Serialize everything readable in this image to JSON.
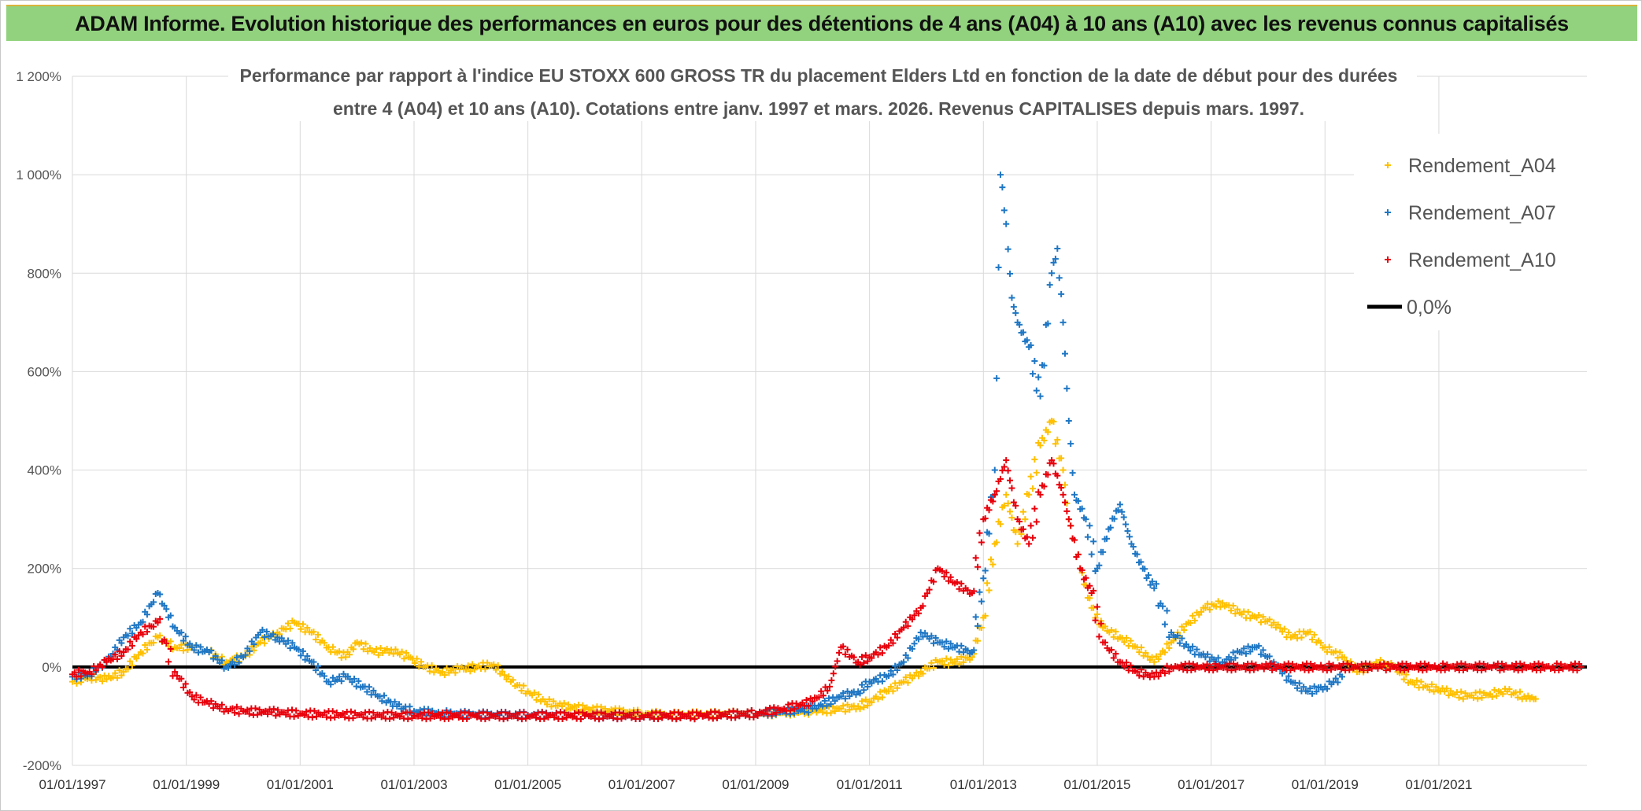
{
  "header": {
    "title": "ADAM Informe. Evolution historique des performances en euros pour des détentions de 4 ans (A04) à 10 ans (A10) avec les revenus connus capitalisés"
  },
  "chart_data": {
    "type": "scatter",
    "title_line1": "Performance par rapport à l'indice EU STOXX 600 GROSS TR  du placement Elders Ltd en fonction de la date de début pour des durées",
    "title_line2": "entre 4 (A04) et 10 ans (A10). Cotations entre janv. 1997 et mars. 2026. Revenus CAPITALISES depuis mars. 1997.",
    "xlabel": "",
    "ylabel": "",
    "xlim": [
      1997.0,
      2023.6
    ],
    "ylim": [
      -200,
      1200
    ],
    "y_ticks": [
      {
        "value": 1200,
        "label": "1 200%"
      },
      {
        "value": 1000,
        "label": "1 000%"
      },
      {
        "value": 800,
        "label": "800%"
      },
      {
        "value": 600,
        "label": "600%"
      },
      {
        "value": 400,
        "label": "400%"
      },
      {
        "value": 200,
        "label": "200%"
      },
      {
        "value": 0,
        "label": "0%"
      },
      {
        "value": -200,
        "label": "-200%"
      }
    ],
    "x_ticks": [
      {
        "value": 1997,
        "label": "01/01/1997"
      },
      {
        "value": 1999,
        "label": "01/01/1999"
      },
      {
        "value": 2001,
        "label": "01/01/2001"
      },
      {
        "value": 2003,
        "label": "01/01/2003"
      },
      {
        "value": 2005,
        "label": "01/01/2005"
      },
      {
        "value": 2007,
        "label": "01/01/2007"
      },
      {
        "value": 2009,
        "label": "01/01/2009"
      },
      {
        "value": 2011,
        "label": "01/01/2011"
      },
      {
        "value": 2013,
        "label": "01/01/2013"
      },
      {
        "value": 2015,
        "label": "01/01/2015"
      },
      {
        "value": 2017,
        "label": "01/01/2017"
      },
      {
        "value": 2019,
        "label": "01/01/2019"
      },
      {
        "value": 2021,
        "label": "01/01/2021"
      }
    ],
    "legend": [
      {
        "name": "Rendement_A04",
        "marker": "+",
        "color": "#ffc000"
      },
      {
        "name": "Rendement_A07",
        "marker": "+",
        "color": "#1f77c4"
      },
      {
        "name": "Rendement_A10",
        "marker": "+",
        "color": "#e8000b"
      },
      {
        "name": "0,0%",
        "marker": "line",
        "color": "#000000"
      }
    ],
    "legend_position": "top-right",
    "series": [
      {
        "name": "Rendement_A04",
        "color": "#ffc000",
        "points": [
          [
            1997.0,
            -30
          ],
          [
            1997.3,
            -20
          ],
          [
            1997.6,
            -25
          ],
          [
            1997.9,
            -10
          ],
          [
            1998.2,
            30
          ],
          [
            1998.5,
            60
          ],
          [
            1998.8,
            40
          ],
          [
            1999.1,
            40
          ],
          [
            1999.4,
            30
          ],
          [
            1999.7,
            10
          ],
          [
            2000.0,
            20
          ],
          [
            2000.3,
            50
          ],
          [
            2000.6,
            70
          ],
          [
            2000.9,
            90
          ],
          [
            2001.2,
            70
          ],
          [
            2001.5,
            40
          ],
          [
            2001.8,
            20
          ],
          [
            2002.0,
            50
          ],
          [
            2002.3,
            30
          ],
          [
            2002.6,
            35
          ],
          [
            2002.9,
            20
          ],
          [
            2003.2,
            0
          ],
          [
            2003.5,
            -10
          ],
          [
            2003.8,
            -5
          ],
          [
            2004.1,
            0
          ],
          [
            2004.4,
            5
          ],
          [
            2004.7,
            -30
          ],
          [
            2005.0,
            -50
          ],
          [
            2005.3,
            -70
          ],
          [
            2005.6,
            -80
          ],
          [
            2006.0,
            -85
          ],
          [
            2006.5,
            -90
          ],
          [
            2007.0,
            -95
          ],
          [
            2007.5,
            -98
          ],
          [
            2008.0,
            -97
          ],
          [
            2008.5,
            -96
          ],
          [
            2009.0,
            -95
          ],
          [
            2009.5,
            -92
          ],
          [
            2010.0,
            -90
          ],
          [
            2010.5,
            -85
          ],
          [
            2010.8,
            -80
          ],
          [
            2011.0,
            -70
          ],
          [
            2011.3,
            -50
          ],
          [
            2011.6,
            -30
          ],
          [
            2011.9,
            -10
          ],
          [
            2012.2,
            10
          ],
          [
            2012.5,
            10
          ],
          [
            2012.8,
            20
          ],
          [
            2013.0,
            100
          ],
          [
            2013.2,
            250
          ],
          [
            2013.4,
            350
          ],
          [
            2013.6,
            250
          ],
          [
            2013.8,
            350
          ],
          [
            2014.0,
            450
          ],
          [
            2014.2,
            500
          ],
          [
            2014.4,
            400
          ],
          [
            2014.5,
            300
          ],
          [
            2014.7,
            200
          ],
          [
            2014.9,
            120
          ],
          [
            2015.1,
            80
          ],
          [
            2015.4,
            60
          ],
          [
            2015.7,
            40
          ],
          [
            2016.0,
            10
          ],
          [
            2016.3,
            50
          ],
          [
            2016.6,
            90
          ],
          [
            2016.9,
            120
          ],
          [
            2017.2,
            130
          ],
          [
            2017.5,
            110
          ],
          [
            2017.8,
            100
          ],
          [
            2018.1,
            90
          ],
          [
            2018.4,
            60
          ],
          [
            2018.7,
            70
          ],
          [
            2019.0,
            40
          ],
          [
            2019.3,
            20
          ],
          [
            2019.6,
            -10
          ],
          [
            2019.9,
            10
          ],
          [
            2020.2,
            0
          ],
          [
            2020.5,
            -30
          ],
          [
            2020.8,
            -40
          ],
          [
            2021.1,
            -50
          ],
          [
            2021.5,
            -60
          ],
          [
            2021.9,
            -55
          ],
          [
            2022.2,
            -50
          ],
          [
            2022.5,
            -60
          ],
          [
            2022.7,
            -65
          ]
        ]
      },
      {
        "name": "Rendement_A07",
        "color": "#1f77c4",
        "points": [
          [
            1997.0,
            -20
          ],
          [
            1997.3,
            -15
          ],
          [
            1997.6,
            10
          ],
          [
            1997.9,
            60
          ],
          [
            1998.2,
            90
          ],
          [
            1998.5,
            150
          ],
          [
            1998.8,
            80
          ],
          [
            1999.1,
            40
          ],
          [
            1999.4,
            30
          ],
          [
            1999.7,
            0
          ],
          [
            2000.0,
            20
          ],
          [
            2000.3,
            70
          ],
          [
            2000.6,
            60
          ],
          [
            2000.9,
            40
          ],
          [
            2001.2,
            10
          ],
          [
            2001.5,
            -30
          ],
          [
            2001.8,
            -20
          ],
          [
            2002.1,
            -40
          ],
          [
            2002.4,
            -60
          ],
          [
            2002.7,
            -80
          ],
          [
            2003.0,
            -90
          ],
          [
            2003.5,
            -95
          ],
          [
            2004.0,
            -97
          ],
          [
            2004.5,
            -98
          ],
          [
            2005.0,
            -98
          ],
          [
            2006.0,
            -99
          ],
          [
            2007.0,
            -99
          ],
          [
            2008.0,
            -99
          ],
          [
            2009.0,
            -95
          ],
          [
            2009.5,
            -90
          ],
          [
            2010.0,
            -85
          ],
          [
            2010.5,
            -60
          ],
          [
            2010.8,
            -50
          ],
          [
            2011.0,
            -30
          ],
          [
            2011.3,
            -20
          ],
          [
            2011.6,
            10
          ],
          [
            2011.9,
            70
          ],
          [
            2012.2,
            50
          ],
          [
            2012.5,
            40
          ],
          [
            2012.8,
            30
          ],
          [
            2013.0,
            180
          ],
          [
            2013.2,
            400
          ],
          [
            2013.3,
            1000
          ],
          [
            2013.4,
            900
          ],
          [
            2013.5,
            750
          ],
          [
            2013.6,
            700
          ],
          [
            2013.8,
            650
          ],
          [
            2014.0,
            550
          ],
          [
            2014.2,
            800
          ],
          [
            2014.3,
            850
          ],
          [
            2014.4,
            700
          ],
          [
            2014.5,
            500
          ],
          [
            2014.6,
            350
          ],
          [
            2014.8,
            300
          ],
          [
            2015.0,
            200
          ],
          [
            2015.2,
            280
          ],
          [
            2015.4,
            330
          ],
          [
            2015.6,
            250
          ],
          [
            2015.8,
            200
          ],
          [
            2016.0,
            160
          ],
          [
            2016.3,
            70
          ],
          [
            2016.6,
            40
          ],
          [
            2016.9,
            20
          ],
          [
            2017.2,
            10
          ],
          [
            2017.5,
            30
          ],
          [
            2017.8,
            40
          ],
          [
            2018.1,
            10
          ],
          [
            2018.4,
            -30
          ],
          [
            2018.7,
            -50
          ],
          [
            2019.0,
            -40
          ],
          [
            2019.3,
            -20
          ]
        ]
      },
      {
        "name": "Rendement_A10",
        "color": "#e8000b",
        "points": [
          [
            1997.0,
            -15
          ],
          [
            1997.3,
            -10
          ],
          [
            1997.6,
            10
          ],
          [
            1997.9,
            30
          ],
          [
            1998.2,
            70
          ],
          [
            1998.5,
            90
          ],
          [
            1998.8,
            -10
          ],
          [
            1999.1,
            -60
          ],
          [
            1999.4,
            -75
          ],
          [
            1999.7,
            -85
          ],
          [
            2000.0,
            -90
          ],
          [
            2000.5,
            -92
          ],
          [
            2001.0,
            -95
          ],
          [
            2002.0,
            -98
          ],
          [
            2003.0,
            -99
          ],
          [
            2004.0,
            -99
          ],
          [
            2005.0,
            -99
          ],
          [
            2006.0,
            -99
          ],
          [
            2007.0,
            -99
          ],
          [
            2008.0,
            -99
          ],
          [
            2009.0,
            -95
          ],
          [
            2009.5,
            -85
          ],
          [
            2010.0,
            -70
          ],
          [
            2010.3,
            -40
          ],
          [
            2010.5,
            40
          ],
          [
            2010.8,
            10
          ],
          [
            2011.0,
            20
          ],
          [
            2011.3,
            40
          ],
          [
            2011.6,
            80
          ],
          [
            2011.9,
            120
          ],
          [
            2012.2,
            200
          ],
          [
            2012.5,
            170
          ],
          [
            2012.8,
            150
          ],
          [
            2013.0,
            300
          ],
          [
            2013.2,
            350
          ],
          [
            2013.4,
            420
          ],
          [
            2013.6,
            300
          ],
          [
            2013.8,
            250
          ],
          [
            2014.0,
            350
          ],
          [
            2014.2,
            420
          ],
          [
            2014.4,
            350
          ],
          [
            2014.5,
            300
          ],
          [
            2014.7,
            200
          ],
          [
            2014.9,
            150
          ],
          [
            2015.1,
            50
          ],
          [
            2015.4,
            10
          ],
          [
            2015.7,
            -10
          ],
          [
            2016.0,
            -20
          ],
          [
            2016.3,
            0
          ],
          [
            2017.0,
            0
          ],
          [
            2018.0,
            0
          ],
          [
            2019.0,
            0
          ],
          [
            2020.0,
            0
          ],
          [
            2021.0,
            0
          ],
          [
            2022.0,
            0
          ],
          [
            2023.0,
            0
          ],
          [
            2023.5,
            0
          ]
        ]
      }
    ],
    "reference_line": {
      "name": "0,0%",
      "y": 0,
      "color": "#000000"
    }
  }
}
